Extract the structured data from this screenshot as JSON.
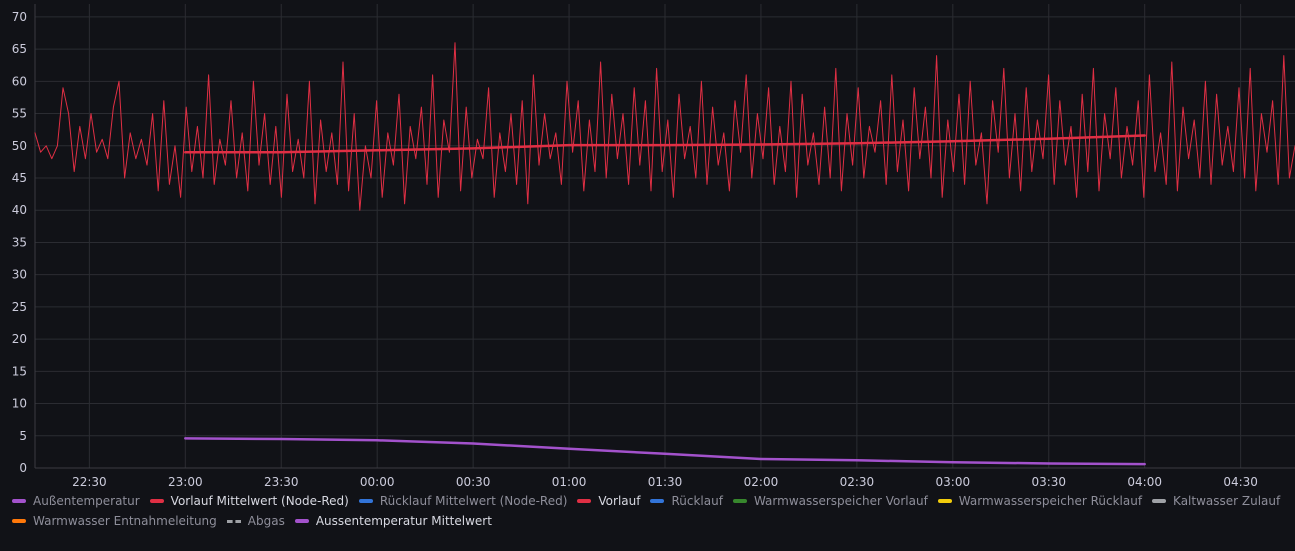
{
  "chart_data": {
    "type": "line",
    "x_ticks": [
      "22:30",
      "23:00",
      "23:30",
      "00:00",
      "00:30",
      "01:00",
      "01:30",
      "02:00",
      "02:30",
      "03:00",
      "03:30",
      "04:00",
      "04:30"
    ],
    "y_ticks": [
      "0",
      "5",
      "10",
      "15",
      "20",
      "25",
      "30",
      "35",
      "40",
      "45",
      "50",
      "55",
      "60",
      "65",
      "70"
    ],
    "ylim": [
      0,
      72
    ],
    "xlim": [
      "22:13",
      "04:47"
    ],
    "grid": true,
    "legend_position": "bottom",
    "series": [
      {
        "name": "Vorlauf Mittelwert (Node-Red)",
        "color": "#e02f44",
        "x": [
          "23:00",
          "23:30",
          "00:00",
          "00:30",
          "01:00",
          "01:30",
          "02:00",
          "02:30",
          "03:00",
          "03:30",
          "04:00"
        ],
        "values": [
          49.0,
          49.0,
          49.3,
          49.6,
          50.1,
          50.1,
          50.2,
          50.4,
          50.7,
          51.1,
          51.6
        ]
      },
      {
        "name": "Vorlauf",
        "color": "#e02f44",
        "x_start": "22:13",
        "x_end": "04:47",
        "values": [
          52,
          49,
          50,
          48,
          50,
          59,
          55,
          46,
          53,
          48,
          55,
          49,
          51,
          48,
          56,
          60,
          45,
          52,
          48,
          51,
          47,
          55,
          43,
          57,
          44,
          50,
          42,
          56,
          46,
          53,
          45,
          61,
          44,
          51,
          47,
          57,
          45,
          52,
          43,
          60,
          47,
          55,
          44,
          53,
          42,
          58,
          46,
          51,
          45,
          60,
          41,
          54,
          46,
          52,
          44,
          63,
          43,
          55,
          40,
          50,
          45,
          57,
          42,
          52,
          47,
          58,
          41,
          53,
          48,
          56,
          44,
          61,
          42,
          54,
          49,
          66,
          43,
          56,
          45,
          51,
          48,
          59,
          42,
          52,
          46,
          55,
          44,
          57,
          41,
          61,
          47,
          55,
          48,
          52,
          44,
          60,
          49,
          57,
          43,
          54,
          46,
          63,
          45,
          58,
          48,
          55,
          44,
          59,
          47,
          57,
          43,
          62,
          46,
          54,
          42,
          58,
          48,
          53,
          45,
          60,
          44,
          56,
          47,
          52,
          43,
          57,
          49,
          61,
          45,
          55,
          48,
          59,
          44,
          53,
          46,
          60,
          42,
          58,
          47,
          52,
          44,
          56,
          45,
          62,
          43,
          55,
          47,
          59,
          45,
          53,
          49,
          57,
          44,
          61,
          46,
          54,
          43,
          59,
          48,
          56,
          45,
          64,
          42,
          54,
          46,
          58,
          44,
          60,
          47,
          52,
          41,
          57,
          49,
          62,
          45,
          55,
          43,
          59,
          46,
          54,
          48,
          61,
          44,
          57,
          47,
          53,
          42,
          58,
          46,
          62,
          43,
          55,
          48,
          59,
          45,
          53,
          47,
          57,
          42,
          61,
          46,
          52,
          44,
          63,
          43,
          56,
          48,
          54,
          45,
          60,
          44,
          58,
          47,
          53,
          46,
          59,
          45,
          62,
          43,
          55,
          49,
          57,
          44,
          64,
          45,
          50
        ]
      },
      {
        "name": "Aussentemperatur Mittelwert",
        "color": "#a352cc",
        "x": [
          "23:00",
          "23:30",
          "00:00",
          "00:30",
          "01:00",
          "01:30",
          "02:00",
          "02:30",
          "03:00",
          "03:30",
          "04:00"
        ],
        "values": [
          4.6,
          4.5,
          4.3,
          3.8,
          3.0,
          2.2,
          1.4,
          1.2,
          0.9,
          0.7,
          0.6
        ]
      }
    ],
    "legend": [
      {
        "label": "Außentemperatur",
        "color": "#a352cc",
        "style": "solid",
        "active": false
      },
      {
        "label": "Vorlauf Mittelwert (Node-Red)",
        "color": "#e02f44",
        "style": "solid",
        "active": true
      },
      {
        "label": "Rücklauf Mittelwert (Node-Red)",
        "color": "#3274d9",
        "style": "solid",
        "active": false
      },
      {
        "label": "Vorlauf",
        "color": "#e02f44",
        "style": "solid",
        "active": true
      },
      {
        "label": "Rücklauf",
        "color": "#3274d9",
        "style": "solid",
        "active": false
      },
      {
        "label": "Warmwasserspeicher Vorlauf",
        "color": "#37872d",
        "style": "solid",
        "active": false
      },
      {
        "label": "Warmwasserspeicher Rücklauf",
        "color": "#f2cc0c",
        "style": "solid",
        "active": false
      },
      {
        "label": "Kaltwasser Zulauf",
        "color": "#9fa1a6",
        "style": "solid",
        "active": false
      },
      {
        "label": "Warmwasser Entnahmeleitung",
        "color": "#ff780a",
        "style": "solid",
        "active": false
      },
      {
        "label": "Abgas",
        "color": "#9fa1a6",
        "style": "dashed",
        "active": false
      },
      {
        "label": "Aussentemperatur Mittelwert",
        "color": "#a352cc",
        "style": "solid",
        "active": true
      }
    ]
  }
}
